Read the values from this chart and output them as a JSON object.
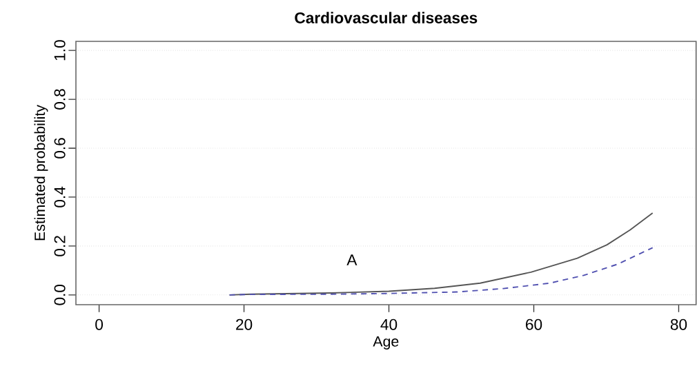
{
  "chart_data": {
    "type": "line",
    "title": "Cardiovascular diseases",
    "xlabel": "Age",
    "ylabel": "Estimated probability",
    "annotations": [
      "A"
    ],
    "xlim": [
      -3.2,
      82.4
    ],
    "ylim": [
      -0.04,
      1.037
    ],
    "xticks": [
      0,
      20,
      40,
      60,
      80
    ],
    "yticks": [
      {
        "value": 0,
        "label": "0.0"
      },
      0.2,
      0.4,
      0.6,
      0.8,
      {
        "value": 1,
        "label": "1.0"
      }
    ],
    "grid": "y",
    "series": [
      {
        "color": "#555555",
        "line_style": "solid",
        "x": [
          18,
          21,
          32,
          40,
          46.3,
          52.6,
          59.6,
          66,
          70.1,
          73.3,
          76.4
        ],
        "values": [
          0.0,
          0.003,
          0.008,
          0.015,
          0.027,
          0.048,
          0.093,
          0.15,
          0.205,
          0.266,
          0.335
        ]
      },
      {
        "color": "#5050b0",
        "line_style": "dashed",
        "x": [
          18,
          21,
          32,
          40,
          49.4,
          55.8,
          62.2,
          66.9,
          71.6,
          76.4
        ],
        "values": [
          0.0,
          0.002,
          0.003,
          0.006,
          0.012,
          0.026,
          0.048,
          0.08,
          0.126,
          0.193
        ]
      }
    ]
  }
}
